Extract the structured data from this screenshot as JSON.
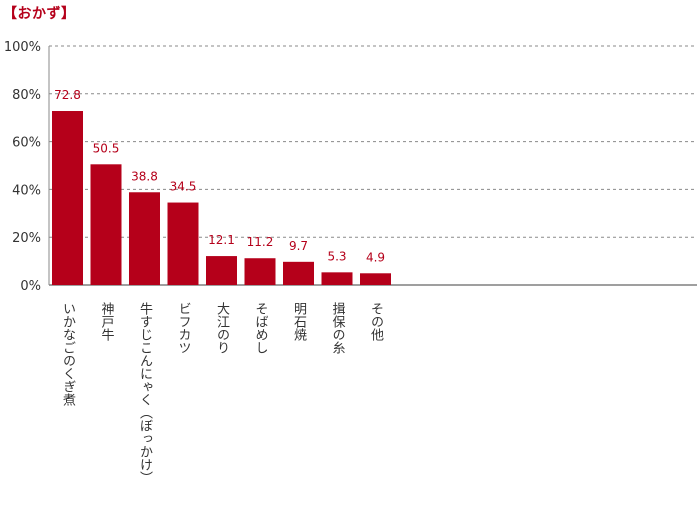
{
  "section_title": "【おかず】",
  "chart_data": {
    "type": "bar",
    "categories": [
      "いかなごのくぎ煮",
      "神戸牛",
      "牛すじこんにゃく（ぼっかけ）",
      "ビフカツ",
      "大江のり",
      "そばめし",
      "明石焼",
      "揖保の糸",
      "その他"
    ],
    "values": [
      72.8,
      50.5,
      38.8,
      34.5,
      12.1,
      11.2,
      9.7,
      5.3,
      4.9
    ],
    "value_labels": [
      "72.8",
      "50.5",
      "38.8",
      "34.5",
      "12.1",
      "11.2",
      "9.7",
      "5.3",
      "4.9"
    ],
    "yticks": [
      "0%",
      "20%",
      "40%",
      "60%",
      "80%",
      "100%"
    ],
    "ylim": [
      0,
      100
    ],
    "grid": true,
    "bar_color": "#b5001a",
    "label_color": "#b5001a"
  }
}
